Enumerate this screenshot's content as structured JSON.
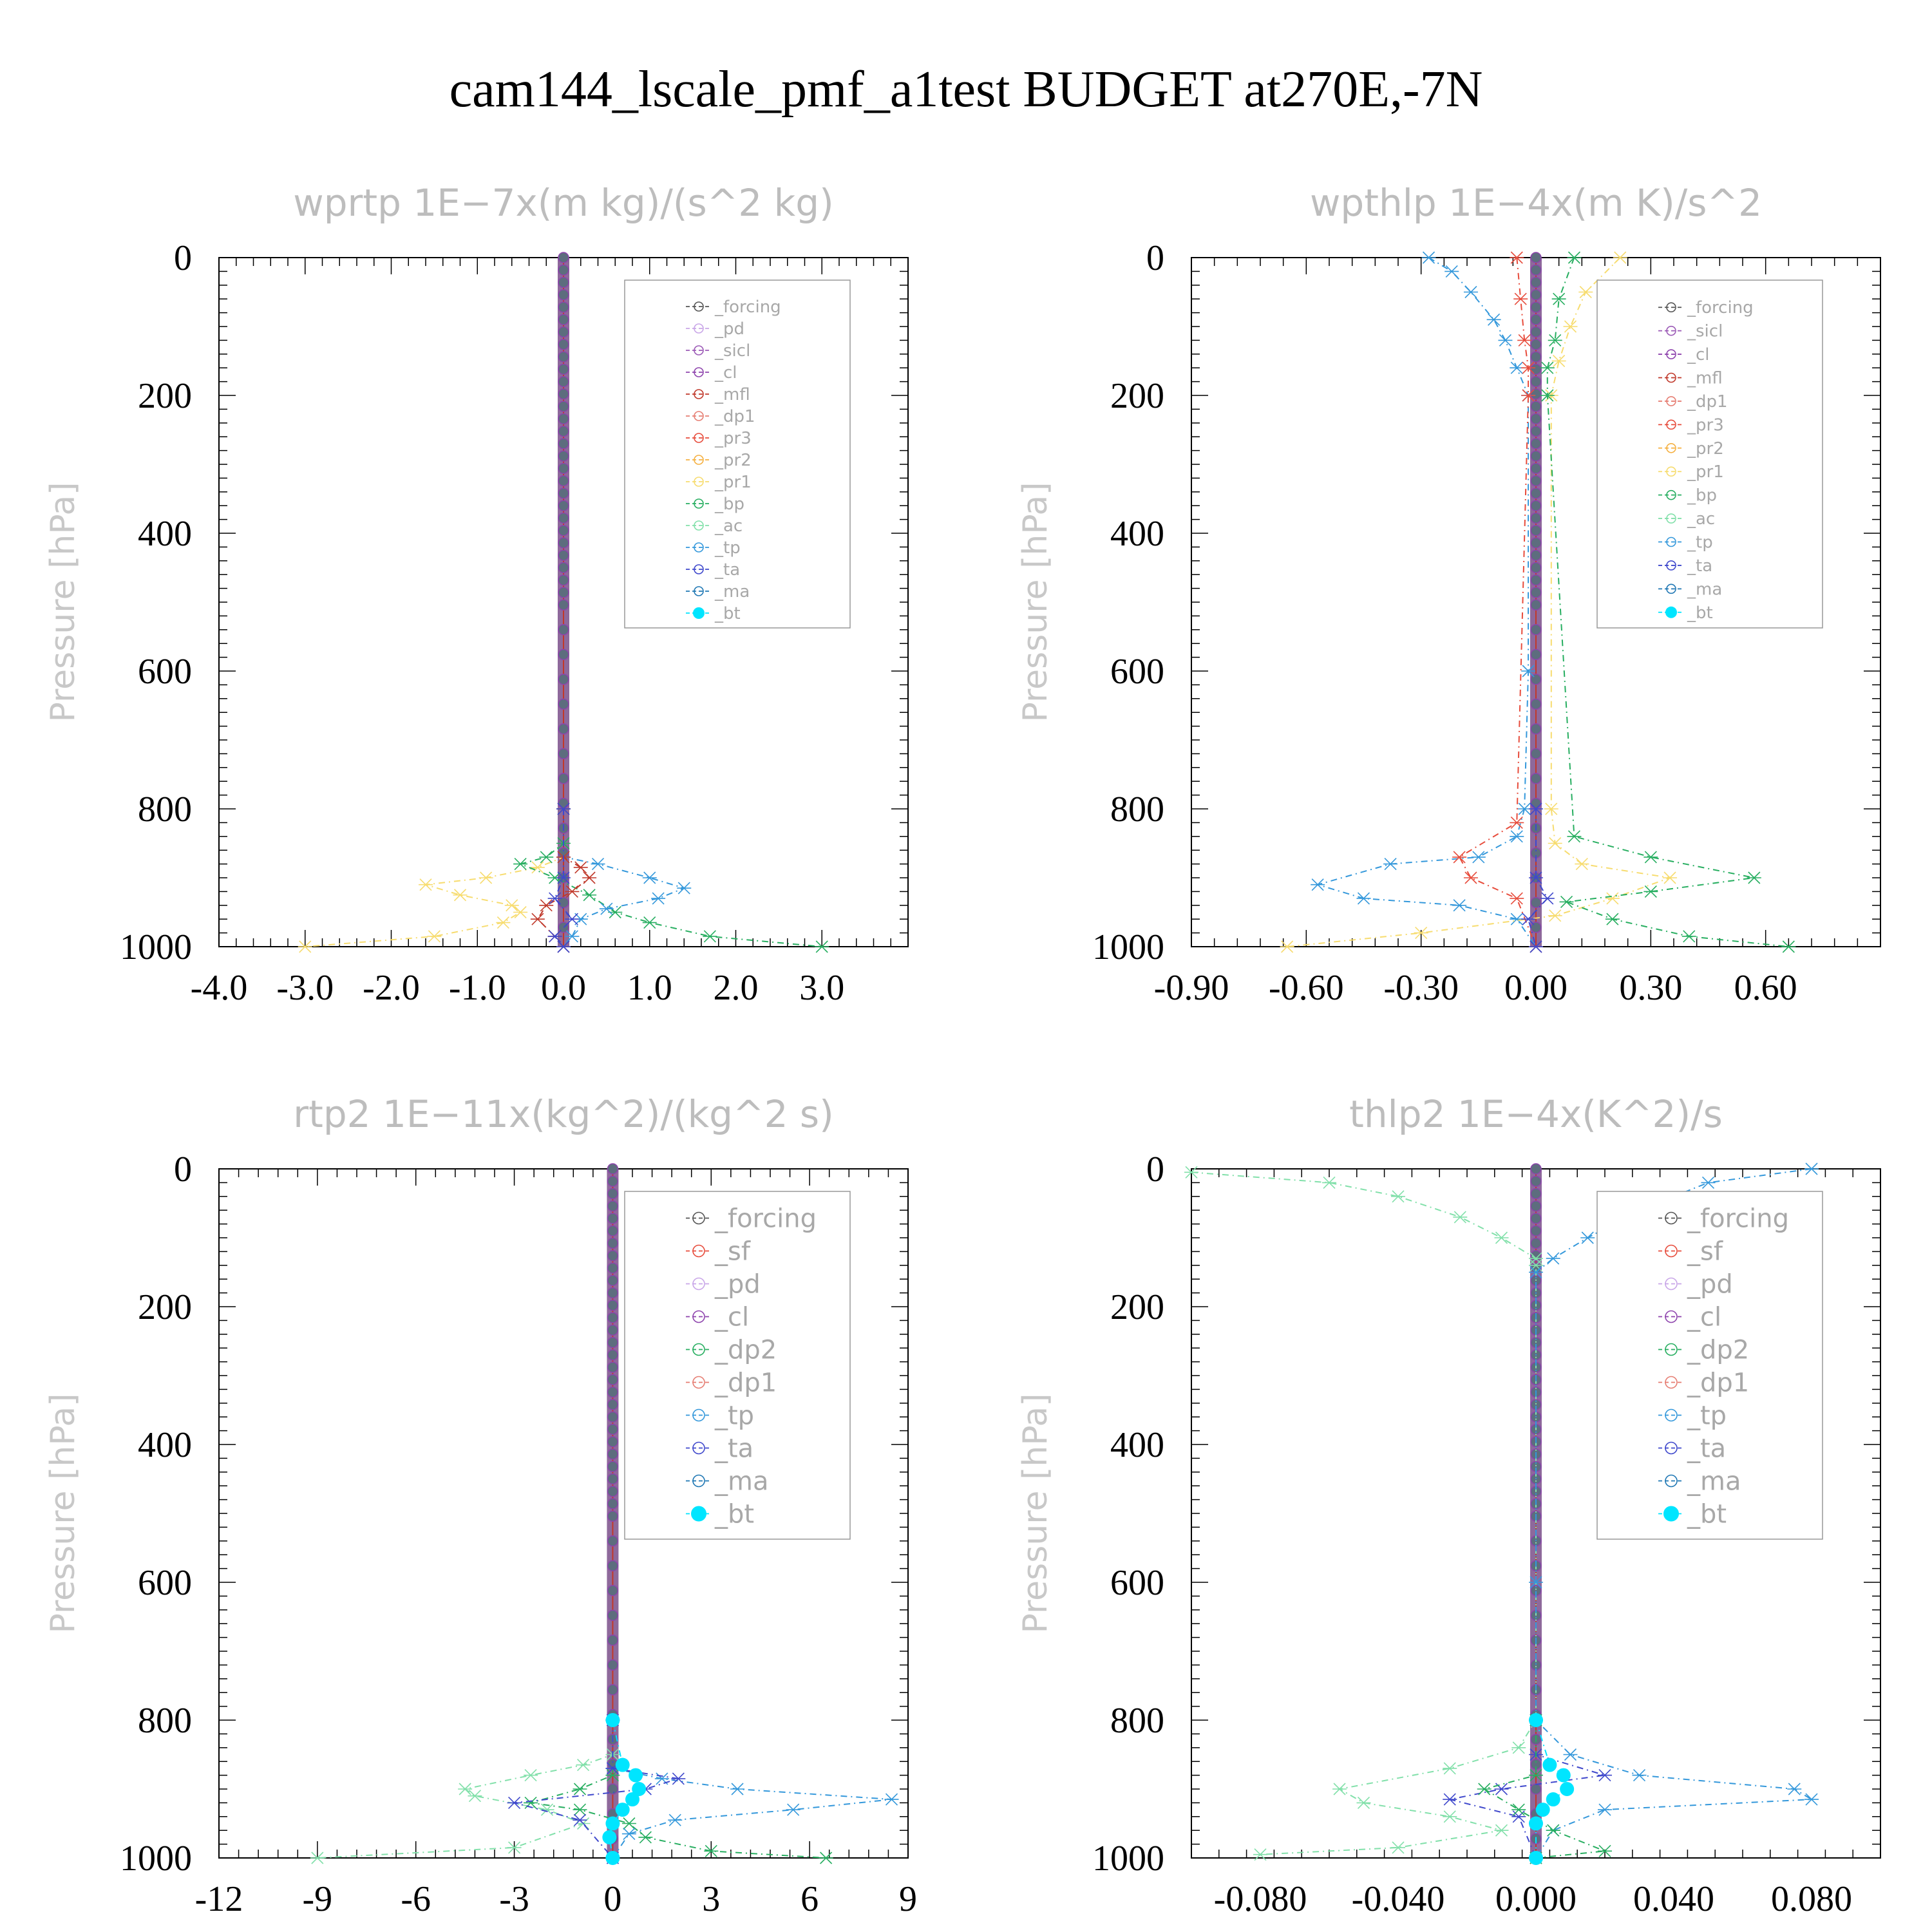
{
  "title": "cam144_lscale_pmf_a1test  BUDGET at270E,-7N",
  "colors": {
    "forcing": "#555555",
    "pd": "#c9a6e8",
    "sicl": "#9b59b6",
    "cl": "#8e44ad",
    "mfl": "#c0392b",
    "dp1": "#e67e73",
    "pr3": "#e74c3c",
    "pr2": "#f5b041",
    "pr1": "#f7dc6f",
    "bp": "#27ae60",
    "ac": "#82e0aa",
    "tp": "#3498db",
    "ta": "#3f48cc",
    "ma": "#1f77b4",
    "bt": "#00e5ff"
  },
  "chart_data": [
    {
      "type": "line",
      "title": "wprtp   1E−7x(m kg)/(s^2 kg)",
      "ylabel": "Pressure [hPa]",
      "xlim": [
        -4.0,
        4.0
      ],
      "ylim": [
        1000,
        0
      ],
      "xticks": [
        -4.0,
        -3.0,
        -2.0,
        -1.0,
        0.0,
        1.0,
        2.0,
        3.0
      ],
      "xtick_labels": [
        "-4.0",
        "-3.0",
        "-2.0",
        "-1.0",
        "0.0",
        "1.0",
        "2.0",
        "3.0"
      ],
      "yticks": [
        0,
        200,
        400,
        600,
        800,
        1000
      ],
      "ytick_labels": [
        "0",
        "200",
        "400",
        "600",
        "800",
        "1000"
      ],
      "legend_position": "top-right",
      "legend": [
        "_forcing",
        "_pd",
        "_sicl",
        "_cl",
        "_mfl",
        "_dp1",
        "_pr3",
        "_pr2",
        "_pr1",
        "_bp",
        "_ac",
        "_tp",
        "_ta",
        "_ma",
        "_bt"
      ],
      "series": [
        {
          "name": "_pr1",
          "color": "pr1",
          "x": [
            0,
            0,
            -0.3,
            -0.9,
            -1.6,
            -1.2,
            -0.6,
            -0.5,
            -0.7,
            -1.5,
            -3.0
          ],
          "y": [
            800,
            870,
            885,
            900,
            910,
            925,
            940,
            950,
            965,
            985,
            1000
          ]
        },
        {
          "name": "_bp",
          "color": "bp",
          "x": [
            0,
            0,
            -0.2,
            -0.5,
            -0.1,
            0.3,
            0.6,
            1.0,
            1.7,
            3.0
          ],
          "y": [
            800,
            850,
            870,
            880,
            900,
            925,
            950,
            965,
            985,
            1000
          ]
        },
        {
          "name": "_tp",
          "color": "tp",
          "x": [
            0,
            0,
            0.4,
            1.0,
            1.4,
            1.1,
            0.5,
            0.2,
            0.1,
            0
          ],
          "y": [
            800,
            870,
            880,
            900,
            915,
            930,
            945,
            960,
            985,
            1000
          ]
        },
        {
          "name": "_mfl",
          "color": "mfl",
          "x": [
            0,
            0,
            0.2,
            0.3,
            0.1,
            -0.2,
            -0.3,
            -0.1,
            0
          ],
          "y": [
            800,
            870,
            885,
            900,
            920,
            940,
            960,
            985,
            1000
          ]
        },
        {
          "name": "_ta",
          "color": "ta",
          "x": [
            0,
            0,
            -0.1,
            0.1,
            -0.1,
            0
          ],
          "y": [
            800,
            900,
            930,
            960,
            985,
            1000
          ]
        }
      ]
    },
    {
      "type": "line",
      "title": "wpthlp   1E−4x(m K)/s^2",
      "ylabel": "Pressure [hPa]",
      "xlim": [
        -0.9,
        0.9
      ],
      "ylim": [
        1000,
        0
      ],
      "xticks": [
        -0.9,
        -0.6,
        -0.3,
        0.0,
        0.3,
        0.6
      ],
      "xtick_labels": [
        "-0.90",
        "-0.60",
        "-0.30",
        "0.00",
        "0.30",
        "0.60"
      ],
      "yticks": [
        0,
        200,
        400,
        600,
        800,
        1000
      ],
      "ytick_labels": [
        "0",
        "200",
        "400",
        "600",
        "800",
        "1000"
      ],
      "legend_position": "top-right",
      "legend": [
        "_forcing",
        "_sicl",
        "_cl",
        "_mfl",
        "_dp1",
        "_pr3",
        "_pr2",
        "_pr1",
        "_bp",
        "_ac",
        "_tp",
        "_ta",
        "_ma",
        "_bt"
      ],
      "series": [
        {
          "name": "_tp",
          "color": "tp",
          "x": [
            -0.28,
            -0.22,
            -0.17,
            -0.11,
            -0.08,
            -0.05,
            -0.02,
            -0.02,
            -0.03,
            -0.05,
            -0.15,
            -0.38,
            -0.57,
            -0.45,
            -0.2,
            -0.05,
            0
          ],
          "y": [
            0,
            20,
            50,
            90,
            120,
            160,
            200,
            600,
            800,
            840,
            870,
            880,
            910,
            930,
            940,
            960,
            1000
          ]
        },
        {
          "name": "_pr1",
          "color": "pr1",
          "x": [
            0.22,
            0.13,
            0.09,
            0.06,
            0.04,
            0.04,
            0.05,
            0.12,
            0.35,
            0.2,
            0.05,
            -0.3,
            -0.65
          ],
          "y": [
            0,
            50,
            100,
            150,
            200,
            800,
            850,
            880,
            900,
            930,
            955,
            980,
            1000
          ]
        },
        {
          "name": "_bp",
          "color": "bp",
          "x": [
            0.1,
            0.06,
            0.05,
            0.03,
            0.03,
            0.1,
            0.3,
            0.57,
            0.3,
            0.08,
            0.2,
            0.4,
            0.66
          ],
          "y": [
            0,
            60,
            120,
            160,
            200,
            840,
            870,
            900,
            920,
            935,
            960,
            985,
            1000
          ]
        },
        {
          "name": "_pr3",
          "color": "pr3",
          "x": [
            -0.05,
            -0.04,
            -0.03,
            -0.02,
            -0.02,
            -0.05,
            -0.2,
            -0.17,
            -0.05,
            0
          ],
          "y": [
            0,
            60,
            120,
            160,
            200,
            820,
            870,
            900,
            930,
            1000
          ]
        },
        {
          "name": "_ta",
          "color": "ta",
          "x": [
            0,
            0,
            0.03,
            -0.02,
            0
          ],
          "y": [
            800,
            900,
            930,
            960,
            1000
          ]
        }
      ]
    },
    {
      "type": "line",
      "title": "rtp2   1E−11x(kg^2)/(kg^2 s)",
      "ylabel": "Pressure [hPa]",
      "xlim": [
        -12,
        9
      ],
      "ylim": [
        1000,
        0
      ],
      "xticks": [
        -12,
        -9,
        -6,
        -3,
        0,
        3,
        6,
        9
      ],
      "xtick_labels": [
        "-12",
        "-9",
        "-6",
        "-3",
        "0",
        "3",
        "6",
        "9"
      ],
      "yticks": [
        0,
        200,
        400,
        600,
        800,
        1000
      ],
      "ytick_labels": [
        "0",
        "200",
        "400",
        "600",
        "800",
        "1000"
      ],
      "legend_position": "top-right",
      "legend": [
        "_forcing",
        "_sf",
        "_pd",
        "_cl",
        "_dp2",
        "_dp1",
        "_tp",
        "_ta",
        "_ma",
        "_bt"
      ],
      "series": [
        {
          "name": "_dp1",
          "color": "ac",
          "x": [
            0,
            0,
            -0.9,
            -2.5,
            -4.5,
            -4.2,
            -2.0,
            -0.9,
            -3.0,
            -9.0
          ],
          "y": [
            800,
            850,
            865,
            880,
            900,
            910,
            930,
            950,
            985,
            1000
          ]
        },
        {
          "name": "_dp2",
          "color": "bp",
          "x": [
            0,
            0,
            -1.0,
            -2.5,
            -1.0,
            0.5,
            1.0,
            3.0,
            6.5
          ],
          "y": [
            800,
            880,
            900,
            920,
            930,
            950,
            970,
            990,
            1000
          ]
        },
        {
          "name": "_tp",
          "color": "tp",
          "x": [
            0,
            0,
            1.5,
            3.8,
            8.5,
            5.5,
            1.9,
            0.5,
            0
          ],
          "y": [
            800,
            870,
            885,
            900,
            915,
            930,
            945,
            965,
            1000
          ]
        },
        {
          "name": "_ta",
          "color": "ta",
          "x": [
            0,
            0,
            2.0,
            1.0,
            -3.0,
            -1.0,
            0
          ],
          "y": [
            800,
            870,
            885,
            900,
            920,
            945,
            1000
          ]
        },
        {
          "name": "_bt",
          "color": "bt",
          "x": [
            0,
            0.3,
            0.7,
            0.8,
            0.6,
            0.3,
            0,
            -0.1,
            0
          ],
          "y": [
            800,
            865,
            880,
            900,
            915,
            930,
            950,
            970,
            1000
          ]
        }
      ]
    },
    {
      "type": "line",
      "title": "thlp2   1E−4x(K^2)/s",
      "ylabel": "Pressure [hPa]",
      "xlim": [
        -0.1,
        0.1
      ],
      "ylim": [
        1000,
        0
      ],
      "xticks": [
        -0.08,
        -0.04,
        0.0,
        0.04,
        0.08
      ],
      "xtick_labels": [
        "-0.080",
        "-0.040",
        "0.000",
        "0.040",
        "0.080"
      ],
      "yticks": [
        0,
        200,
        400,
        600,
        800,
        1000
      ],
      "ytick_labels": [
        "0",
        "200",
        "400",
        "600",
        "800",
        "1000"
      ],
      "legend_position": "top-right",
      "legend": [
        "_forcing",
        "_sf",
        "_pd",
        "_cl",
        "_dp2",
        "_dp1",
        "_tp",
        "_ta",
        "_ma",
        "_bt"
      ],
      "series": [
        {
          "name": "_dp1",
          "color": "ac",
          "x": [
            -0.1,
            -0.06,
            -0.04,
            -0.022,
            -0.01,
            0,
            0,
            0,
            -0.005,
            -0.025,
            -0.057,
            -0.05,
            -0.025,
            -0.01,
            -0.04,
            -0.08
          ],
          "y": [
            5,
            20,
            40,
            70,
            100,
            130,
            140,
            800,
            840,
            870,
            900,
            920,
            940,
            960,
            985,
            995
          ]
        },
        {
          "name": "_tp",
          "color": "tp",
          "x": [
            0.08,
            0.05,
            0.03,
            0.015,
            0.005,
            0,
            0,
            0,
            0.01,
            0.03,
            0.075,
            0.08,
            0.02,
            0.005,
            0
          ],
          "y": [
            0,
            20,
            60,
            100,
            130,
            150,
            600,
            800,
            850,
            880,
            900,
            915,
            930,
            960,
            1000
          ]
        },
        {
          "name": "_ta",
          "color": "ta",
          "x": [
            0,
            0,
            0.02,
            -0.01,
            -0.025,
            -0.005,
            0
          ],
          "y": [
            800,
            850,
            880,
            900,
            915,
            940,
            1000
          ]
        },
        {
          "name": "_dp2",
          "color": "bp",
          "x": [
            0,
            0,
            -0.015,
            -0.005,
            0.005,
            0.02,
            0
          ],
          "y": [
            800,
            880,
            900,
            930,
            960,
            990,
            1000
          ]
        },
        {
          "name": "_bt",
          "color": "bt",
          "x": [
            0,
            0.004,
            0.008,
            0.009,
            0.005,
            0.002,
            0,
            0
          ],
          "y": [
            800,
            865,
            880,
            900,
            915,
            930,
            950,
            1000
          ]
        }
      ]
    }
  ]
}
